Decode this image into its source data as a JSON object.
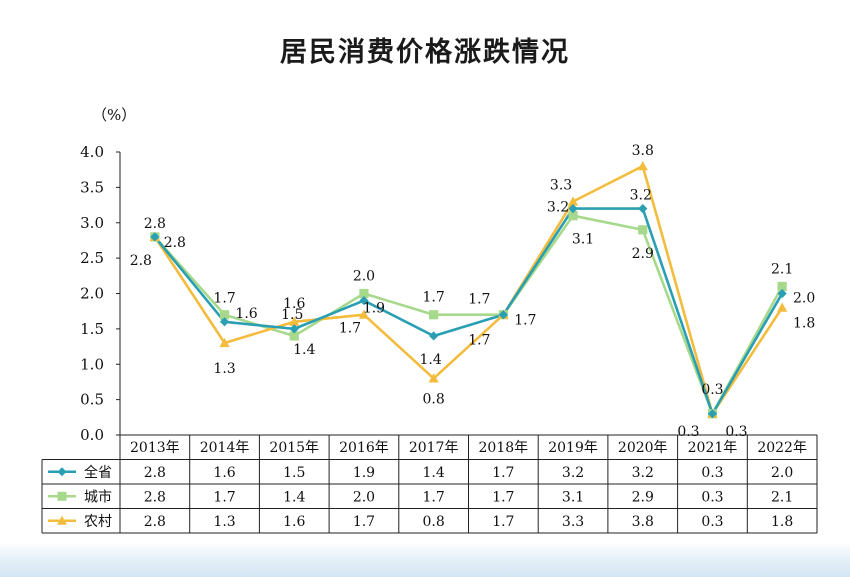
{
  "title": "居民消费价格涨跌情况",
  "unit_label": "（%）",
  "chart_data": {
    "type": "line",
    "title": "居民消费价格涨跌情况",
    "ylabel": "（%）",
    "xlabel": "",
    "ylim": [
      0,
      4.0
    ],
    "yticks": [
      "0.0",
      "0.5",
      "1.0",
      "1.5",
      "2.0",
      "2.5",
      "3.0",
      "3.5",
      "4.0"
    ],
    "categories": [
      "2013年",
      "2014年",
      "2015年",
      "2016年",
      "2017年",
      "2018年",
      "2019年",
      "2020年",
      "2021年",
      "2022年"
    ],
    "grid": false,
    "legend": "data-table-below",
    "series": [
      {
        "name": "全省",
        "color": "#2a9fb3",
        "marker": "diamond",
        "values": [
          2.8,
          1.6,
          1.5,
          1.9,
          1.4,
          1.7,
          3.2,
          3.2,
          0.3,
          2.0
        ],
        "labels": [
          "2.8",
          "1.6",
          "1.5",
          "1.9",
          "1.4",
          "1.7",
          "3.2",
          "3.2",
          "0.3",
          "2.0"
        ]
      },
      {
        "name": "城市",
        "color": "#a6d98b",
        "marker": "square",
        "values": [
          2.8,
          1.7,
          1.4,
          2.0,
          1.7,
          1.7,
          3.1,
          2.9,
          0.3,
          2.1
        ],
        "labels": [
          "2.8",
          "1.7",
          "1.4",
          "2.0",
          "1.7",
          "1.7",
          "3.1",
          "2.9",
          "0.3",
          "2.1"
        ]
      },
      {
        "name": "农村",
        "color": "#f3bc3c",
        "marker": "triangle",
        "values": [
          2.8,
          1.3,
          1.6,
          1.7,
          0.8,
          1.7,
          3.3,
          3.8,
          0.3,
          1.8
        ],
        "labels": [
          "2.8",
          "1.3",
          "1.6",
          "1.7",
          "0.8",
          "1.7",
          "3.3",
          "3.8",
          "0.3",
          "1.8"
        ]
      }
    ]
  }
}
